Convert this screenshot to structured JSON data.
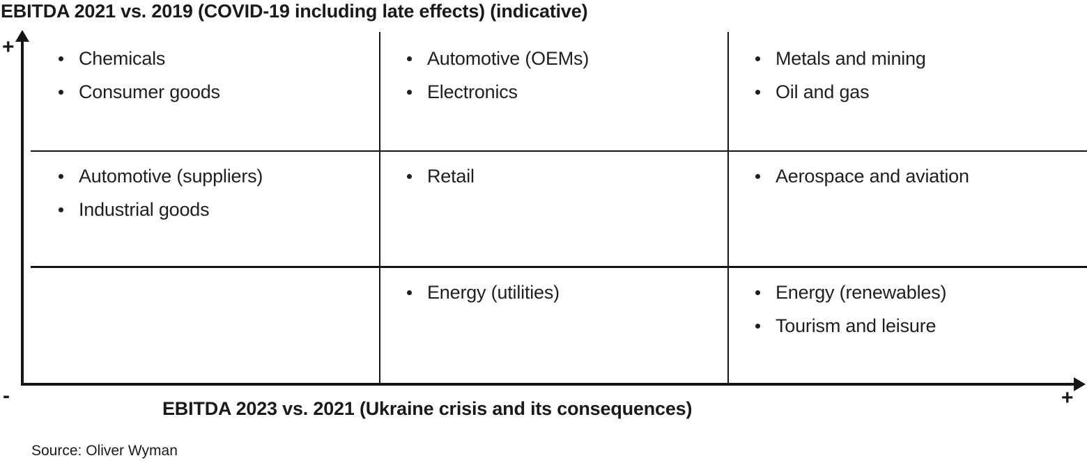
{
  "title": "EBITDA 2021 vs. 2019 (COVID-19 including late effects) (indicative)",
  "source": "Source: Oliver Wyman",
  "axis_markers": {
    "y_top": "+",
    "y_bottom": "-",
    "x_right": "+"
  },
  "colors": {
    "text": "#1f1f1f",
    "line": "#161616",
    "background": "#ffffff"
  },
  "chart_data": {
    "type": "table",
    "subtype": "3x3 qualitative impact matrix",
    "title": "EBITDA 2021 vs. 2019 (COVID-19 including late effects) (indicative)",
    "ylabel": "EBITDA 2021 vs. 2019 (COVID-19 including late effects) (indicative)",
    "xlabel": "EBITDA 2023 vs. 2021 (Ukraine crisis and its consequences)",
    "y_axis_markers": {
      "top": "+",
      "bottom": "-"
    },
    "x_axis_markers": {
      "right": "+"
    },
    "layout": {
      "rows": 3,
      "cols": 3,
      "gridlines": true,
      "legend": "none"
    },
    "cells": [
      {
        "row": 0,
        "col": 0,
        "items": [
          "Chemicals",
          "Consumer goods"
        ]
      },
      {
        "row": 0,
        "col": 1,
        "items": [
          "Automotive (OEMs)",
          "Electronics"
        ]
      },
      {
        "row": 0,
        "col": 2,
        "items": [
          "Metals and mining",
          "Oil and gas"
        ]
      },
      {
        "row": 1,
        "col": 0,
        "items": [
          "Automotive (suppliers)",
          "Industrial goods"
        ]
      },
      {
        "row": 1,
        "col": 1,
        "items": [
          "Retail"
        ]
      },
      {
        "row": 1,
        "col": 2,
        "items": [
          "Aerospace and aviation"
        ]
      },
      {
        "row": 2,
        "col": 0,
        "items": []
      },
      {
        "row": 2,
        "col": 1,
        "items": [
          "Energy (utilities)"
        ]
      },
      {
        "row": 2,
        "col": 2,
        "items": [
          "Energy (renewables)",
          "Tourism and leisure"
        ]
      }
    ]
  }
}
